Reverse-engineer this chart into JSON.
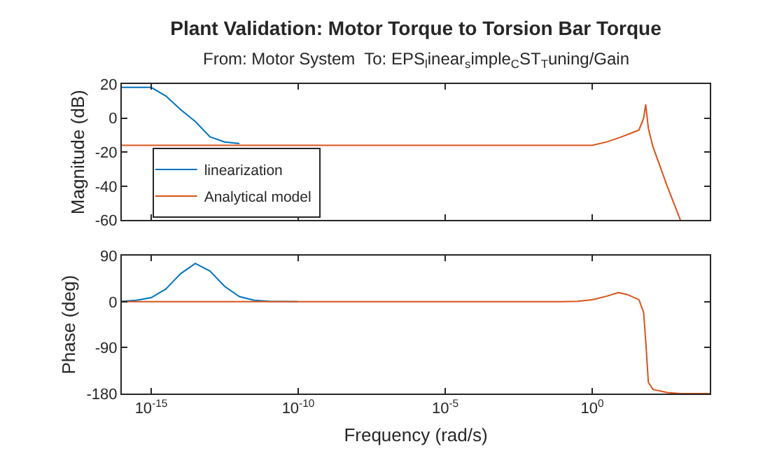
{
  "chart_data": [
    {
      "type": "line",
      "title": "Plant Validation: Motor Torque to Torsion Bar Torque",
      "subtitle": "From: Motor System  To: EPS$_{l}$inear$_{s}$imple$_{C}$ST$_{T}$uning/Gain",
      "ylabel": "Magnitude (dB)",
      "log": "x",
      "grid": false,
      "legend": "bottom left",
      "tick_labels": "y",
      "xlim": [
        1e-16,
        10000
      ],
      "xticks": [
        {
          "value": 1e-15,
          "label": null
        },
        {
          "value": 1e-10,
          "label": null
        },
        {
          "value": 1e-05,
          "label": null
        },
        {
          "value": 1,
          "label": null
        }
      ],
      "ylim": [
        -60,
        20
      ],
      "yticks": [
        -60,
        -40,
        -20,
        0,
        20
      ],
      "series": [
        {
          "name": "linearization",
          "color": "#0072bd",
          "x": [
            1e-16,
            3.16e-16,
            1e-15,
            3.16e-15,
            1e-14,
            3.16e-14,
            1e-13,
            3.16e-13,
            1e-12
          ],
          "values": [
            18,
            18,
            18,
            13,
            5,
            -2,
            -11,
            -14,
            -15
          ]
        },
        {
          "name": "Analytical model",
          "color": "#d95319",
          "x": [
            1e-16,
            0.1,
            0.316,
            1,
            3.16,
            10,
            20,
            38.9,
            56.2,
            66.1,
            81.3,
            117,
            200,
            355,
            631,
            1000
          ],
          "values": [
            -16,
            -16,
            -16,
            -16,
            -14,
            -11,
            -9,
            -7,
            0,
            8,
            -6,
            -17,
            -28,
            -40,
            -51,
            -60
          ]
        }
      ]
    },
    {
      "type": "line",
      "xlabel": "Frequency (rad/s)",
      "ylabel": "Phase (deg)",
      "log": "x",
      "grid": false,
      "xlim": [
        1e-16,
        10000
      ],
      "xticks": [
        {
          "value": 1e-15,
          "label": "10$^{-15}$"
        },
        {
          "value": 1e-10,
          "label": "10$^{-10}$"
        },
        {
          "value": 1e-05,
          "label": "10$^{-5}$"
        },
        {
          "value": 1,
          "label": "10$^{0}$"
        }
      ],
      "ylim": [
        -180,
        90
      ],
      "yticks": [
        -180,
        -90,
        0,
        90
      ],
      "series": [
        {
          "color": "#0072bd",
          "x": [
            1e-16,
            3.16e-16,
            1e-15,
            3.16e-15,
            1e-14,
            3.16e-14,
            1e-13,
            3.16e-13,
            1e-12,
            3.16e-12,
            1e-11,
            1e-10
          ],
          "values": [
            1,
            3,
            8,
            25,
            55,
            75,
            60,
            30,
            10,
            3,
            1,
            0
          ]
        },
        {
          "color": "#d95319",
          "x": [
            1e-16,
            0.1,
            0.316,
            1,
            3.16,
            7.76,
            15.8,
            38.9,
            56.2,
            67.6,
            81.3,
            117,
            355,
            1000,
            10000
          ],
          "values": [
            0,
            0,
            1,
            4,
            11,
            18,
            14,
            4,
            -21,
            -85,
            -158,
            -172,
            -178,
            -180,
            -180
          ]
        }
      ]
    }
  ]
}
